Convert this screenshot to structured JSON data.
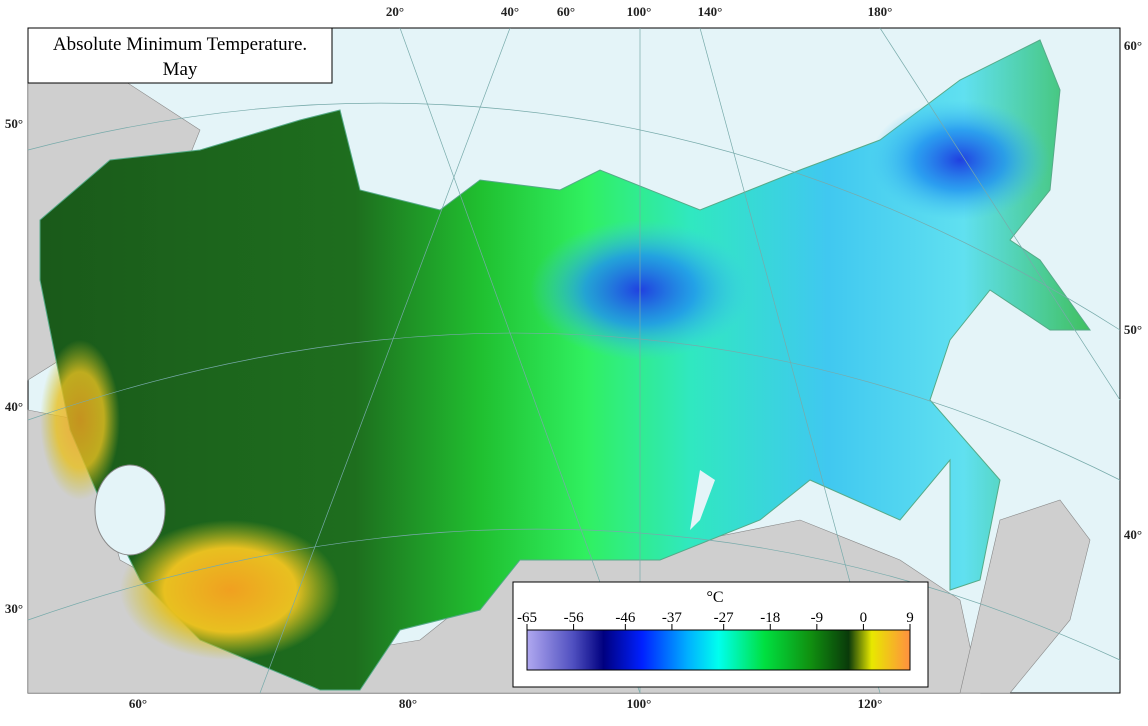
{
  "title": [
    "Absolute Minimum Temperature.",
    "May"
  ],
  "graticule": {
    "top": [
      "20°",
      "40°",
      "60°",
      "100°",
      "140°",
      "180°"
    ],
    "left": [
      "50°",
      "40°",
      "30°"
    ],
    "right": [
      "60°",
      "50°",
      "40°"
    ],
    "bottom": [
      "60°",
      "80°",
      "100°",
      "120°"
    ]
  },
  "legend": {
    "unit": "°C",
    "ticks": [
      -65,
      -56,
      -46,
      -37,
      -27,
      -18,
      -9,
      0,
      9
    ]
  }
}
